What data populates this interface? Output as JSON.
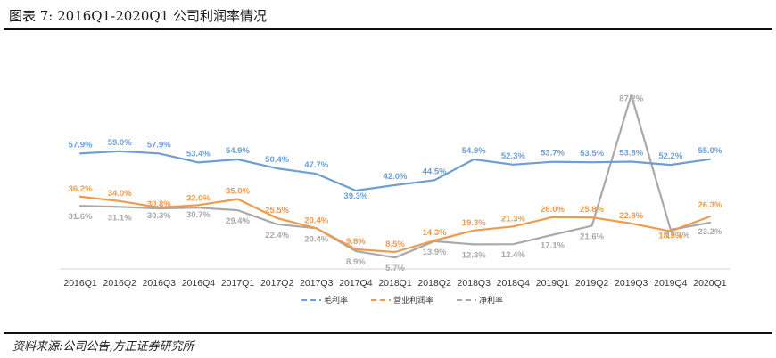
{
  "figure": {
    "title": "图表 7:  2016Q1-2020Q1 公司利润率情况",
    "source": "资料来源:公司公告,方正证券研究所"
  },
  "colors": {
    "gross": "#6c9fd6",
    "operating": "#ef9a4c",
    "net": "#a9a9a9",
    "rule": "#111111"
  },
  "chart_data": {
    "type": "line",
    "title": "",
    "xlabel": "",
    "ylabel": "",
    "ylim": [
      0,
      100
    ],
    "grid": false,
    "legend_position": "bottom",
    "categories": [
      "2016Q1",
      "2016Q2",
      "2016Q3",
      "2016Q4",
      "2017Q1",
      "2017Q2",
      "2017Q3",
      "2017Q4",
      "2018Q1",
      "2018Q2",
      "2018Q3",
      "2018Q4",
      "2019Q1",
      "2019Q2",
      "2019Q3",
      "2019Q4",
      "2020Q1"
    ],
    "series": [
      {
        "name": "毛利率",
        "key": "gross",
        "dash": false,
        "values": [
          57.9,
          59.0,
          57.9,
          53.4,
          54.9,
          50.4,
          47.7,
          39.3,
          42.0,
          44.5,
          54.9,
          52.3,
          53.7,
          53.5,
          53.8,
          52.2,
          55.0
        ],
        "labels": [
          "57.9%",
          "59.0%",
          "57.9%",
          "53.4%",
          "54.9%",
          "50.4%",
          "47.7%",
          "39.3%",
          "42.0%",
          "44.5%",
          "54.9%",
          "52.3%",
          "53.7%",
          "53.5%",
          "53.8%",
          "52.2%",
          "55.0%"
        ]
      },
      {
        "name": "营业利润率",
        "key": "operating",
        "dash": true,
        "values": [
          36.2,
          34.0,
          30.8,
          32.0,
          35.0,
          25.5,
          20.4,
          9.8,
          8.5,
          14.3,
          19.3,
          21.3,
          26.0,
          25.8,
          22.8,
          18.9,
          26.3
        ],
        "labels": [
          "36.2%",
          "34.0%",
          "30.8%",
          "32.0%",
          "35.0%",
          "25.5%",
          "20.4%",
          "9.8%",
          "8.5%",
          "14.3%",
          "19.3%",
          "21.3%",
          "26.0%",
          "25.8%",
          "22.8%",
          "18.9%",
          "26.3%"
        ]
      },
      {
        "name": "净利率",
        "key": "net",
        "dash": true,
        "values": [
          31.6,
          31.1,
          30.3,
          30.7,
          29.4,
          22.4,
          20.4,
          8.9,
          5.7,
          13.9,
          12.3,
          12.4,
          17.1,
          21.6,
          87.2,
          19.7,
          23.2
        ],
        "labels": [
          "31.6%",
          "31.1%",
          "30.3%",
          "30.7%",
          "29.4%",
          "22.4%",
          "20.4%",
          "8.9%",
          "5.7%",
          "13.9%",
          "12.3%",
          "12.4%",
          "17.1%",
          "21.6%",
          "87.2%",
          "19.7%",
          "23.2%"
        ]
      }
    ]
  }
}
